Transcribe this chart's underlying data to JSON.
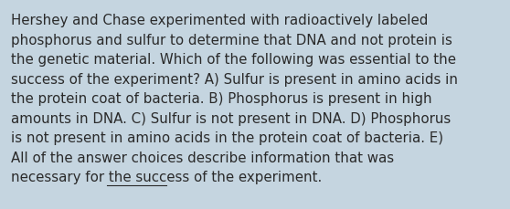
{
  "background_color": "#c5d5e0",
  "text_color": "#2a2a2a",
  "font_size": 10.8,
  "text": "Hershey and Chase experimented with radioactively labeled\nphosphorus and sulfur to determine that DNA and not protein is\nthe genetic material. Which of the following was essential to the\nsuccess of the experiment? A) Sulfur is present in amino acids in\nthe protein coat of bacteria. B) Phosphorus is present in high\namounts in DNA. C) Sulfur is not present in DNA. D) Phosphorus\nis not present in amino acids in the protein coat of bacteria. E)\nAll of the answer choices describe information that was\nnecessary for the success of the experiment.",
  "underline_text": "for the",
  "underline_prefix": "necessary ",
  "figsize": [
    5.58,
    2.3
  ],
  "dpi": 100
}
